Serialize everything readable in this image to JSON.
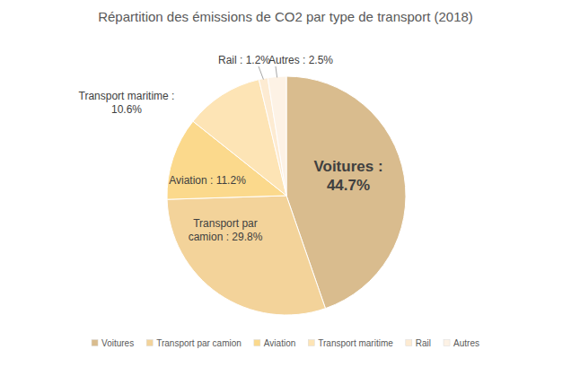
{
  "chart_data": {
    "type": "pie",
    "title": "Répartition des émissions de CO2 par type de transport (2018)",
    "categories": [
      "Voitures",
      "Transport par camion",
      "Aviation",
      "Transport maritime",
      "Rail",
      "Autres"
    ],
    "values": [
      44.7,
      29.8,
      11.2,
      10.6,
      1.2,
      2.5
    ],
    "value_labels": [
      "Voitures : 44.7%",
      "Transport par camion : 29.8%",
      "Aviation : 11.2%",
      "Transport maritime : 10.6%",
      "Rail : 1.2%",
      "Autres : 2.5%"
    ],
    "colors": [
      "#d9bc8e",
      "#f3d39a",
      "#fbd98c",
      "#fde4b5",
      "#fdebd2",
      "#fdf2e5"
    ],
    "data_labels": true,
    "legend": "bottom"
  }
}
